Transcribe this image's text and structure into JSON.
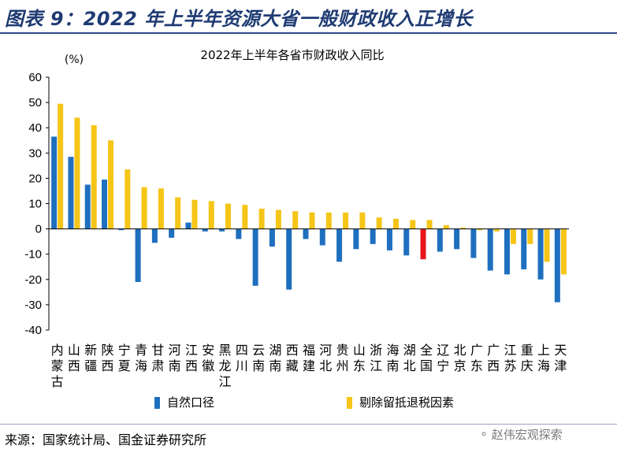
{
  "header": {
    "figure_title": "图表 9：2022 年上半年资源大省一般财政收入正增长"
  },
  "footer": {
    "source": "来源：国家统计局、国金证券研究所",
    "watermark": "赵伟宏观探索"
  },
  "colors": {
    "natural": "#1f6fbf",
    "adjusted": "#f5c518",
    "national": "#e8141c"
  },
  "chart_data": {
    "type": "bar",
    "title": "2022年上半年各省市财政收入同比",
    "ylabel": "(%)",
    "ylim": [
      -40,
      60
    ],
    "yticks": [
      60,
      50,
      40,
      30,
      20,
      10,
      0,
      -10,
      -20,
      -30,
      -40
    ],
    "grid": false,
    "legend_position": "bottom",
    "categories": [
      "内蒙古",
      "山西",
      "新疆",
      "陕西",
      "宁夏",
      "青海",
      "甘肃",
      "河南",
      "江西",
      "安徽",
      "黑龙江",
      "四川",
      "云南",
      "湖南",
      "西藏",
      "福建",
      "河北",
      "贵州",
      "山东",
      "浙江",
      "海南",
      "湖北",
      "全国",
      "辽宁",
      "北京",
      "广东",
      "广西",
      "江苏",
      "重庆",
      "上海",
      "天津"
    ],
    "highlight_category": "全国",
    "series": [
      {
        "name": "自然口径",
        "values": [
          36.5,
          28.5,
          17.5,
          19.5,
          -0.5,
          -21,
          -5.5,
          -3.5,
          2.5,
          -1,
          -1,
          -4,
          -22.5,
          -7,
          -24,
          -4,
          -6.5,
          -13,
          -8,
          -6,
          -8.5,
          -10.5,
          -12,
          -9,
          -8,
          -11.5,
          -16.5,
          -18,
          -16,
          -20,
          -29
        ]
      },
      {
        "name": "剔除留抵退税因素",
        "values": [
          49.5,
          44,
          41,
          35,
          23.5,
          16.5,
          16,
          12.5,
          11.5,
          11,
          10,
          9.5,
          8,
          7.5,
          7,
          6.5,
          6.5,
          6.5,
          6.5,
          4.5,
          4,
          3.5,
          3.5,
          1.5,
          0.5,
          -0.5,
          -1,
          -6,
          -6,
          -13,
          -18
        ]
      }
    ]
  }
}
